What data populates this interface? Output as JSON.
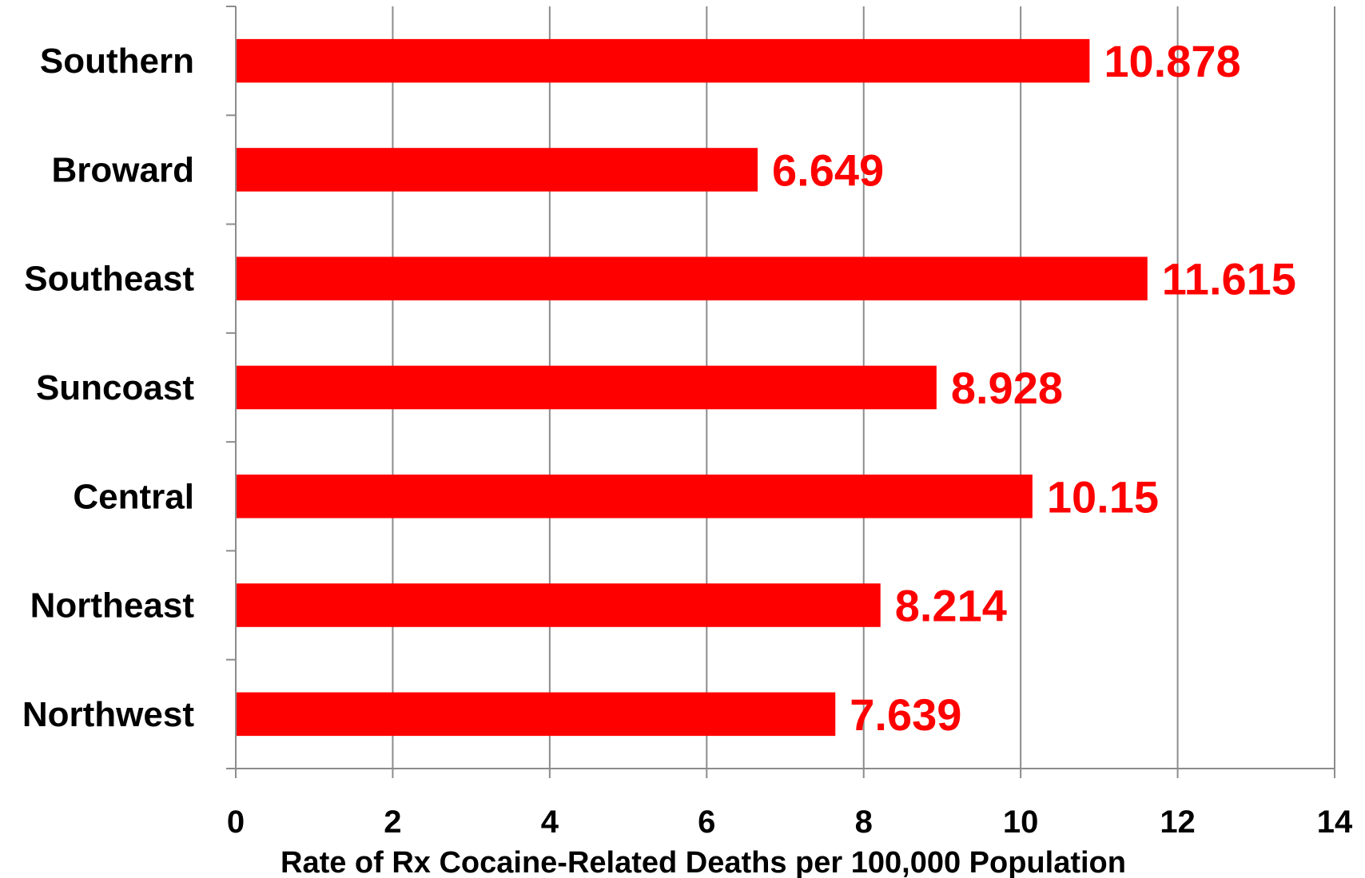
{
  "chart_data": {
    "type": "bar",
    "orientation": "horizontal",
    "title": "",
    "xlabel": "Rate of Rx Cocaine-Related Deaths per 100,000 Population",
    "ylabel": "",
    "categories": [
      "Southern",
      "Broward",
      "Southeast",
      "Suncoast",
      "Central",
      "Northeast",
      "Northwest"
    ],
    "values": [
      10.878,
      6.649,
      11.615,
      8.928,
      10.15,
      8.214,
      7.639
    ],
    "data_labels": [
      "10.878",
      "6.649",
      "11.615",
      "8.928",
      "10.15",
      "8.214",
      "7.639"
    ],
    "xlim": [
      0,
      14
    ],
    "xticks": [
      0,
      2,
      4,
      6,
      8,
      10,
      12,
      14
    ],
    "xtick_labels": [
      "0",
      "2",
      "4",
      "6",
      "8",
      "10",
      "12",
      "14"
    ],
    "grid": "vertical",
    "legend": "none",
    "bar_color": "#ff0000",
    "label_color": "#ff0000"
  }
}
